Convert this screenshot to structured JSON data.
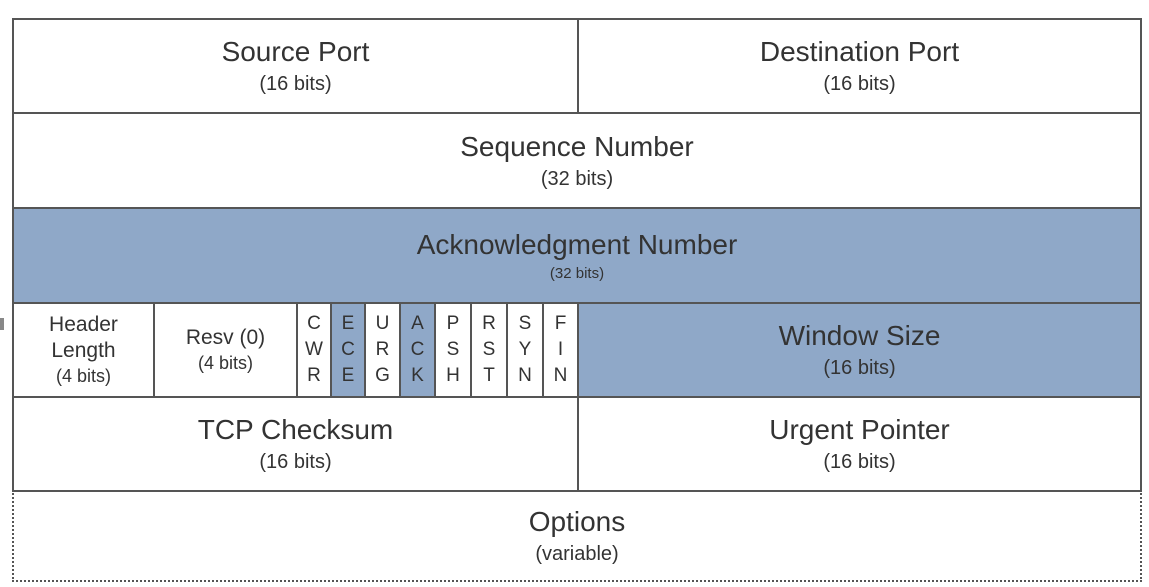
{
  "rows": {
    "row1": {
      "source_port": {
        "name": "Source Port",
        "bits": "(16 bits)"
      },
      "destination_port": {
        "name": "Destination Port",
        "bits": "(16 bits)"
      }
    },
    "row2": {
      "sequence_number": {
        "name": "Sequence Number",
        "bits": "(32 bits)"
      }
    },
    "row3": {
      "acknowledgment_number": {
        "name": "Acknowledgment Number",
        "bits": "(32 bits)"
      }
    },
    "row4": {
      "header_length": {
        "line1": "Header",
        "line2": "Length",
        "bits": "(4 bits)"
      },
      "reserved": {
        "name": "Resv (0)",
        "bits": "(4 bits)"
      },
      "flags": [
        {
          "letters": [
            "C",
            "W",
            "R"
          ],
          "highlight": false
        },
        {
          "letters": [
            "E",
            "C",
            "E"
          ],
          "highlight": true
        },
        {
          "letters": [
            "U",
            "R",
            "G"
          ],
          "highlight": false
        },
        {
          "letters": [
            "A",
            "C",
            "K"
          ],
          "highlight": true
        },
        {
          "letters": [
            "P",
            "S",
            "H"
          ],
          "highlight": false
        },
        {
          "letters": [
            "R",
            "S",
            "T"
          ],
          "highlight": false
        },
        {
          "letters": [
            "S",
            "Y",
            "N"
          ],
          "highlight": false
        },
        {
          "letters": [
            "F",
            "I",
            "N"
          ],
          "highlight": false
        }
      ],
      "window_size": {
        "name": "Window Size",
        "bits": "(16 bits)"
      }
    },
    "row5": {
      "tcp_checksum": {
        "name": "TCP Checksum",
        "bits": "(16 bits)"
      },
      "urgent_pointer": {
        "name": "Urgent Pointer",
        "bits": "(16 bits)"
      }
    },
    "row6": {
      "options": {
        "name": "Options",
        "bits": "(variable)"
      }
    }
  },
  "colors": {
    "highlight": "#8fa8c8",
    "border": "#555555",
    "text": "#333333"
  }
}
